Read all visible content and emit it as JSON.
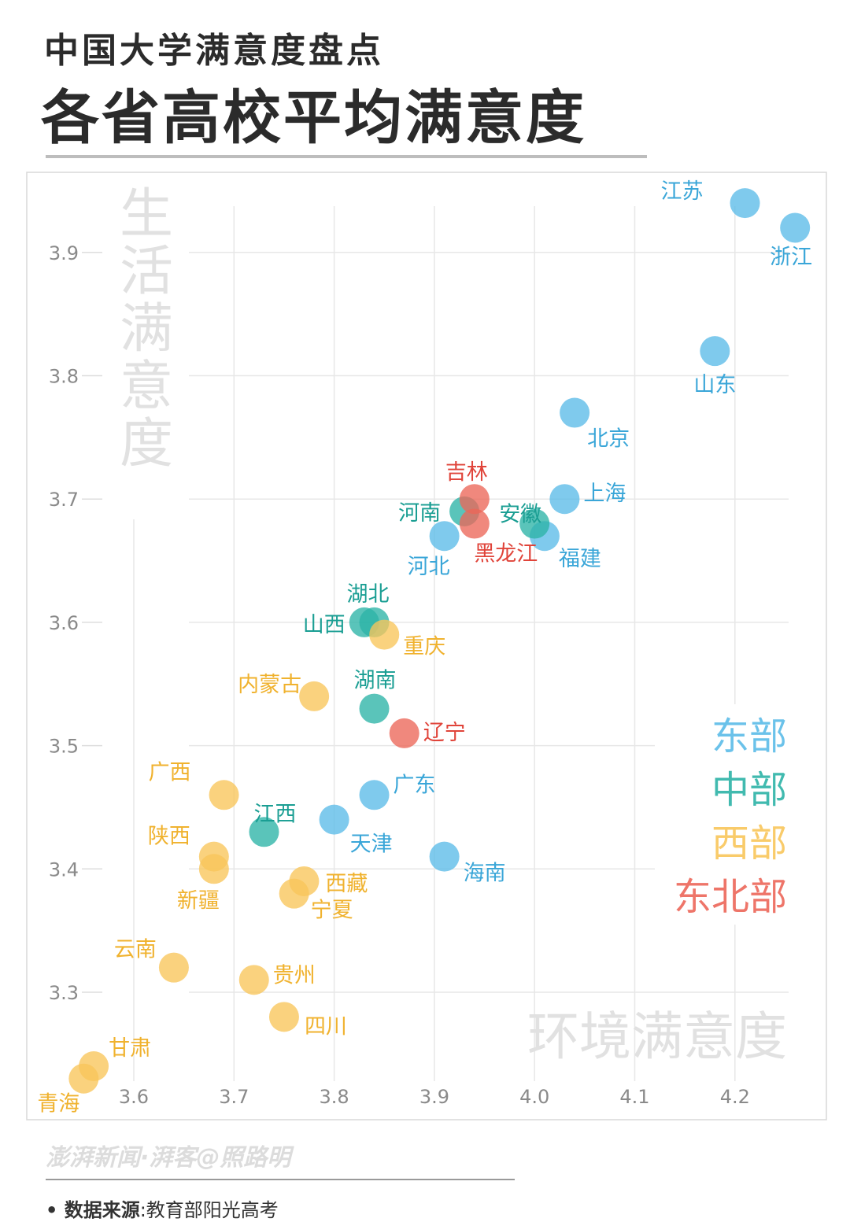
{
  "header": {
    "subtitle": "中国大学满意度盘点",
    "title": "各省高校平均满意度"
  },
  "footer": {
    "credit": "澎湃新闻·湃客@照路明",
    "source_label": "• 数据来源",
    "source_sep": ":",
    "source_value": "教育部阳光高考"
  },
  "colors": {
    "east": "#5bbbe8",
    "central": "#2cb3a6",
    "west": "#f8c55a",
    "northeast": "#ec6659",
    "east_label": "#3aa6d8",
    "central_label": "#1a9e93",
    "west_label": "#f0b22e",
    "northeast_label": "#e0443a"
  },
  "chart_data": {
    "type": "scatter",
    "xlabel": "环境满意度",
    "ylabel": "生活满意度",
    "xlim": [
      3.5,
      4.3
    ],
    "ylim": [
      3.2,
      3.96
    ],
    "x_ticks": [
      "3.6",
      "3.7",
      "3.8",
      "3.9",
      "4.0",
      "4.1",
      "4.2"
    ],
    "y_ticks": [
      "3.3",
      "3.4",
      "3.5",
      "3.6",
      "3.7",
      "3.8",
      "3.9"
    ],
    "grid": true,
    "legend_position": "right",
    "series": [
      {
        "name": "东部",
        "key": "east",
        "points": [
          {
            "label": "江苏",
            "x": 4.21,
            "y": 3.94
          },
          {
            "label": "浙江",
            "x": 4.26,
            "y": 3.92
          },
          {
            "label": "山东",
            "x": 4.18,
            "y": 3.82
          },
          {
            "label": "北京",
            "x": 4.04,
            "y": 3.77
          },
          {
            "label": "上海",
            "x": 4.03,
            "y": 3.7
          },
          {
            "label": "福建",
            "x": 4.01,
            "y": 3.67
          },
          {
            "label": "河北",
            "x": 3.91,
            "y": 3.67
          },
          {
            "label": "广东",
            "x": 3.84,
            "y": 3.46
          },
          {
            "label": "天津",
            "x": 3.8,
            "y": 3.44
          },
          {
            "label": "海南",
            "x": 3.91,
            "y": 3.41
          }
        ]
      },
      {
        "name": "中部",
        "key": "central",
        "points": [
          {
            "label": "河南",
            "x": 3.93,
            "y": 3.69
          },
          {
            "label": "安徽",
            "x": 4.0,
            "y": 3.68
          },
          {
            "label": "湖北",
            "x": 3.84,
            "y": 3.6
          },
          {
            "label": "山西",
            "x": 3.83,
            "y": 3.6
          },
          {
            "label": "湖南",
            "x": 3.84,
            "y": 3.53
          },
          {
            "label": "江西",
            "x": 3.73,
            "y": 3.43
          }
        ]
      },
      {
        "name": "西部",
        "key": "west",
        "points": [
          {
            "label": "重庆",
            "x": 3.85,
            "y": 3.59
          },
          {
            "label": "内蒙古",
            "x": 3.78,
            "y": 3.54
          },
          {
            "label": "广西",
            "x": 3.69,
            "y": 3.46
          },
          {
            "label": "陕西",
            "x": 3.68,
            "y": 3.41
          },
          {
            "label": "新疆",
            "x": 3.68,
            "y": 3.4
          },
          {
            "label": "西藏",
            "x": 3.77,
            "y": 3.39
          },
          {
            "label": "宁夏",
            "x": 3.76,
            "y": 3.38
          },
          {
            "label": "云南",
            "x": 3.64,
            "y": 3.32
          },
          {
            "label": "贵州",
            "x": 3.72,
            "y": 3.31
          },
          {
            "label": "四川",
            "x": 3.75,
            "y": 3.28
          },
          {
            "label": "甘肃",
            "x": 3.56,
            "y": 3.24
          },
          {
            "label": "青海",
            "x": 3.55,
            "y": 3.23
          }
        ]
      },
      {
        "name": "东北部",
        "key": "northeast",
        "points": [
          {
            "label": "吉林",
            "x": 3.94,
            "y": 3.7
          },
          {
            "label": "黑龙江",
            "x": 3.94,
            "y": 3.68
          },
          {
            "label": "辽宁",
            "x": 3.87,
            "y": 3.51
          }
        ]
      }
    ]
  }
}
